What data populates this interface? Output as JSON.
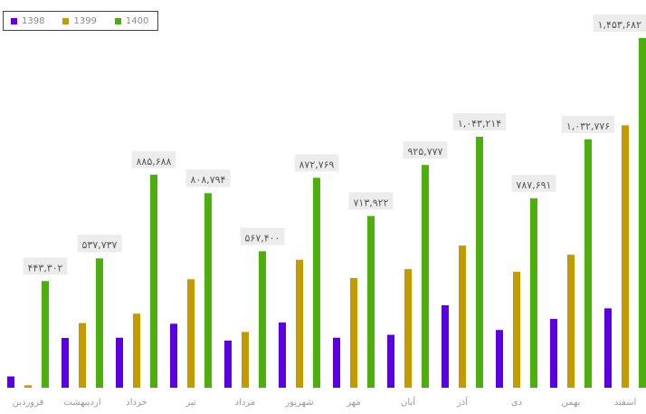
{
  "chart_data": {
    "type": "bar",
    "categories": [
      "فروردین",
      "اردیبهشت",
      "خرداد",
      "تیر",
      "مرداد",
      "شهریور",
      "مهر",
      "آبان",
      "آذر",
      "دی",
      "بهمن",
      "اسفند"
    ],
    "series": [
      {
        "name": "1398",
        "color": "#5b00e0",
        "values": [
          47000,
          207000,
          208000,
          266000,
          196000,
          271000,
          208000,
          220000,
          343000,
          240000,
          286000,
          330000
        ]
      },
      {
        "name": "1399",
        "color": "#c49a00",
        "values": [
          10000,
          269000,
          308000,
          451000,
          232000,
          532000,
          456000,
          493000,
          591000,
          482000,
          553000,
          1091000
        ]
      },
      {
        "name": "1400",
        "color": "#4caf0e",
        "values": [
          443302,
          537737,
          885688,
          808794,
          567400,
          872769,
          713922,
          925777,
          1043214,
          787691,
          1032776,
          1453682
        ]
      }
    ],
    "data_labels": [
      "۴۴۳,۳۰۲",
      "۵۳۷,۷۳۷",
      "۸۸۵,۶۸۸",
      "۸۰۸,۷۹۴",
      "۵۶۷,۴۰۰",
      "۸۷۲,۷۶۹",
      "۷۱۳,۹۲۲",
      "۹۲۵,۷۷۷",
      "۱,۰۴۳,۲۱۴",
      "۷۸۷,۶۹۱",
      "۱,۰۳۲,۷۷۶",
      "۱,۴۵۳,۶۸۲"
    ],
    "legend_position": "top-left",
    "grid": false,
    "ylim": [
      0,
      1453682
    ]
  }
}
